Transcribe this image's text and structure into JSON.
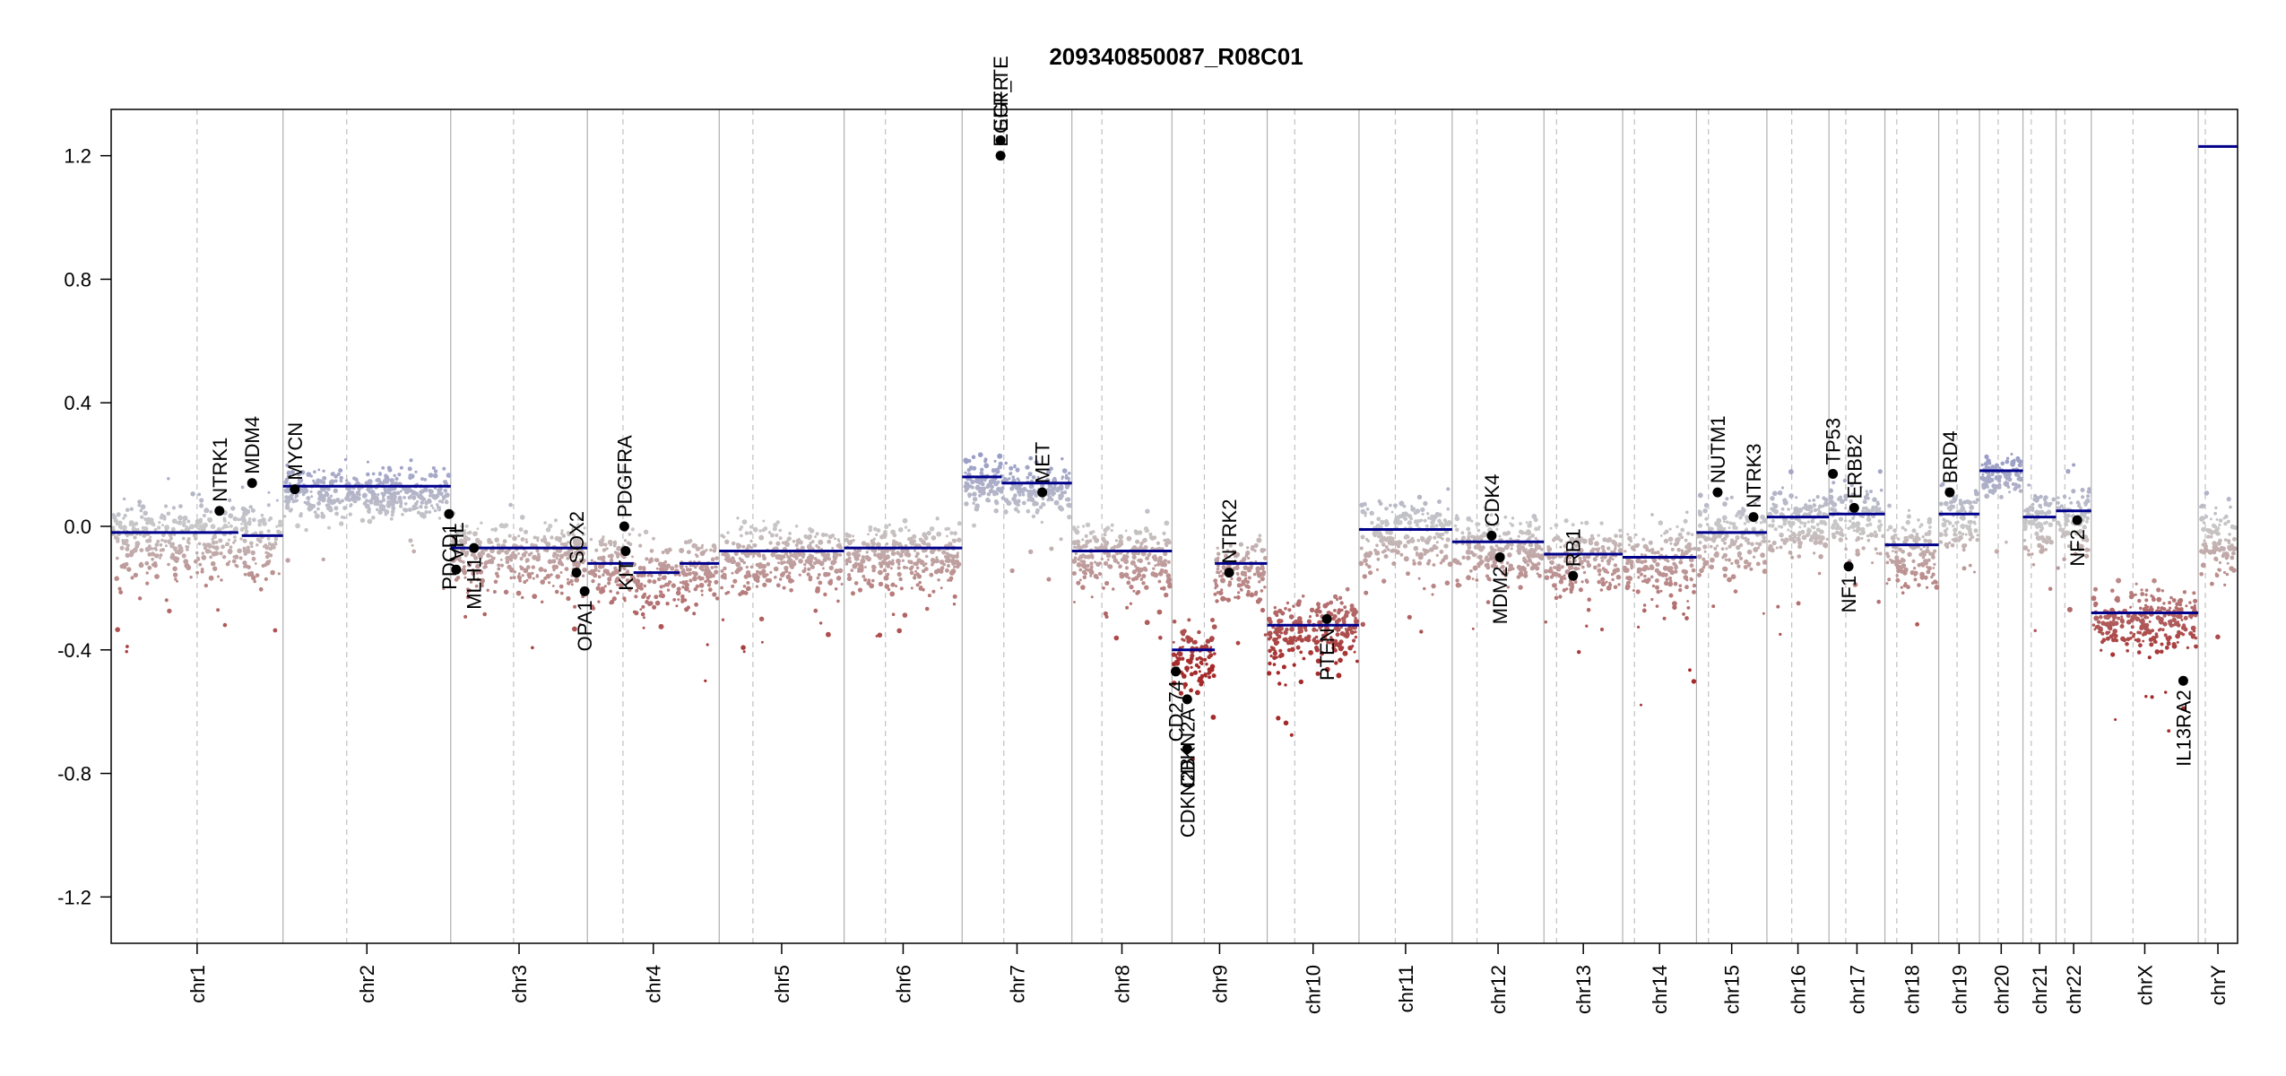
{
  "chart_data": {
    "type": "scatter",
    "title": "209340850087_R08C01",
    "xlabel": "",
    "ylabel": "",
    "ylim": [
      -1.35,
      1.35
    ],
    "yticks": [
      -1.2,
      -0.8,
      -0.4,
      0.0,
      0.4,
      0.8,
      1.2
    ],
    "ytick_labels": [
      "-1.2",
      "-0.8",
      "-0.4",
      "0.0",
      "0.4",
      "0.8",
      "1.2"
    ],
    "colors": {
      "gain": "#8a8fc7",
      "neutral": "#c8c8c8",
      "loss": "#a52a2a",
      "segment": "#00008b",
      "gene_point": "#000000"
    },
    "chromosomes": [
      {
        "name": "chr1",
        "size": 249,
        "centromere": 0.5,
        "segments": [
          [
            0.0,
            0.74,
            -0.02
          ],
          [
            0.76,
            1.0,
            -0.03
          ]
        ],
        "level": -0.05,
        "spread": 0.16
      },
      {
        "name": "chr2",
        "size": 243,
        "centromere": 0.38,
        "segments": [
          [
            0.0,
            1.0,
            0.13
          ]
        ],
        "level": 0.12,
        "spread": 0.1
      },
      {
        "name": "chr3",
        "size": 198,
        "centromere": 0.46,
        "segments": [
          [
            0.0,
            1.0,
            -0.07
          ]
        ],
        "level": -0.1,
        "spread": 0.14
      },
      {
        "name": "chr4",
        "size": 191,
        "centromere": 0.27,
        "segments": [
          [
            0.0,
            0.35,
            -0.12
          ],
          [
            0.35,
            0.7,
            -0.15
          ],
          [
            0.7,
            1.0,
            -0.12
          ]
        ],
        "level": -0.14,
        "spread": 0.14
      },
      {
        "name": "chr5",
        "size": 181,
        "centromere": 0.27,
        "segments": [
          [
            0.0,
            1.0,
            -0.08
          ]
        ],
        "level": -0.08,
        "spread": 0.14
      },
      {
        "name": "chr6",
        "size": 171,
        "centromere": 0.35,
        "segments": [
          [
            0.0,
            1.0,
            -0.07
          ]
        ],
        "level": -0.07,
        "spread": 0.14
      },
      {
        "name": "chr7",
        "size": 159,
        "centromere": 0.38,
        "segments": [
          [
            0.0,
            0.36,
            0.16
          ],
          [
            0.36,
            1.0,
            0.14
          ]
        ],
        "level": 0.14,
        "spread": 0.1
      },
      {
        "name": "chr8",
        "size": 145,
        "centromere": 0.3,
        "segments": [
          [
            0.0,
            1.0,
            -0.08
          ]
        ],
        "level": -0.1,
        "spread": 0.14
      },
      {
        "name": "chr9",
        "size": 138,
        "centromere": 0.34,
        "segments": [
          [
            0.0,
            0.45,
            -0.4
          ],
          [
            0.45,
            1.0,
            -0.12
          ]
        ],
        "level": -0.12,
        "spread": 0.14
      },
      {
        "name": "chr10",
        "size": 133,
        "centromere": 0.3,
        "segments": [
          [
            0.0,
            1.0,
            -0.32
          ]
        ],
        "level": -0.32,
        "spread": 0.14
      },
      {
        "name": "chr11",
        "size": 135,
        "centromere": 0.39,
        "segments": [
          [
            0.0,
            1.0,
            -0.01
          ]
        ],
        "level": -0.04,
        "spread": 0.14
      },
      {
        "name": "chr12",
        "size": 133,
        "centromere": 0.27,
        "segments": [
          [
            0.0,
            1.0,
            -0.05
          ]
        ],
        "level": -0.07,
        "spread": 0.14
      },
      {
        "name": "chr13",
        "size": 114,
        "centromere": 0.16,
        "segments": [
          [
            0.0,
            1.0,
            -0.09
          ]
        ],
        "level": -0.12,
        "spread": 0.14
      },
      {
        "name": "chr14",
        "size": 107,
        "centromere": 0.16,
        "segments": [
          [
            0.0,
            1.0,
            -0.1
          ]
        ],
        "level": -0.18,
        "spread": 0.16
      },
      {
        "name": "chr15",
        "size": 102,
        "centromere": 0.17,
        "segments": [
          [
            0.0,
            1.0,
            -0.02
          ]
        ],
        "level": -0.05,
        "spread": 0.14
      },
      {
        "name": "chr16",
        "size": 90,
        "centromere": 0.4,
        "segments": [
          [
            0.0,
            1.0,
            0.03
          ]
        ],
        "level": -0.02,
        "spread": 0.14
      },
      {
        "name": "chr17",
        "size": 81,
        "centromere": 0.3,
        "segments": [
          [
            0.0,
            1.0,
            0.04
          ]
        ],
        "level": -0.03,
        "spread": 0.14
      },
      {
        "name": "chr18",
        "size": 78,
        "centromere": 0.22,
        "segments": [
          [
            0.0,
            1.0,
            -0.06
          ]
        ],
        "level": -0.12,
        "spread": 0.16
      },
      {
        "name": "chr19",
        "size": 59,
        "centromere": 0.45,
        "segments": [
          [
            0.0,
            1.0,
            0.04
          ]
        ],
        "level": 0.02,
        "spread": 0.14
      },
      {
        "name": "chr20",
        "size": 63,
        "centromere": 0.43,
        "segments": [
          [
            0.0,
            1.0,
            0.18
          ]
        ],
        "level": 0.2,
        "spread": 0.08
      },
      {
        "name": "chr21",
        "size": 48,
        "centromere": 0.25,
        "segments": [
          [
            0.0,
            1.0,
            0.03
          ]
        ],
        "level": -0.1,
        "spread": 0.16
      },
      {
        "name": "chr22",
        "size": 51,
        "centromere": 0.25,
        "segments": [
          [
            0.0,
            1.0,
            0.05
          ]
        ],
        "level": 0.0,
        "spread": 0.14
      },
      {
        "name": "chrX",
        "size": 155,
        "centromere": 0.39,
        "segments": [
          [
            0.0,
            1.0,
            -0.28
          ]
        ],
        "level": -0.32,
        "spread": 0.12
      },
      {
        "name": "chrY",
        "size": 57,
        "centromere": 0.18,
        "segments": [
          [
            0.0,
            1.0,
            1.23
          ]
        ],
        "level": -0.05,
        "spread": 0.14
      }
    ],
    "genes": [
      {
        "name": "NTRK1",
        "chr": "chr1",
        "pos": 0.63,
        "value": 0.05
      },
      {
        "name": "MDM4",
        "chr": "chr1",
        "pos": 0.82,
        "value": 0.14
      },
      {
        "name": "MYCN",
        "chr": "chr2",
        "pos": 0.07,
        "value": 0.12
      },
      {
        "name": "PDCD1",
        "chr": "chr2",
        "pos": 0.99,
        "value": 0.04
      },
      {
        "name": "VHL",
        "chr": "chr3",
        "pos": 0.04,
        "value": -0.14
      },
      {
        "name": "MLH1",
        "chr": "chr3",
        "pos": 0.17,
        "value": -0.07
      },
      {
        "name": "SOX2",
        "chr": "chr3",
        "pos": 0.92,
        "value": -0.15
      },
      {
        "name": "OPA1",
        "chr": "chr3",
        "pos": 0.98,
        "value": -0.21
      },
      {
        "name": "PDGFRA",
        "chr": "chr4",
        "pos": 0.28,
        "value": 0.0
      },
      {
        "name": "KIT",
        "chr": "chr4",
        "pos": 0.29,
        "value": -0.08
      },
      {
        "name": "EGFR",
        "chr": "chr7",
        "pos": 0.35,
        "value": 1.25
      },
      {
        "name": "EGFR_TE",
        "chr": "chr7",
        "pos": 0.35,
        "value": 1.2
      },
      {
        "name": "MET",
        "chr": "chr7",
        "pos": 0.73,
        "value": 0.11
      },
      {
        "name": "CD274",
        "chr": "chr9",
        "pos": 0.04,
        "value": -0.47
      },
      {
        "name": "CDKN2A",
        "chr": "chr9",
        "pos": 0.16,
        "value": -0.56
      },
      {
        "name": "CDKN2B",
        "chr": "chr9",
        "pos": 0.16,
        "value": -0.72
      },
      {
        "name": "NTRK2",
        "chr": "chr9",
        "pos": 0.6,
        "value": -0.15
      },
      {
        "name": "PTEN",
        "chr": "chr10",
        "pos": 0.65,
        "value": -0.3
      },
      {
        "name": "CDK4",
        "chr": "chr12",
        "pos": 0.43,
        "value": -0.03
      },
      {
        "name": "MDM2",
        "chr": "chr12",
        "pos": 0.52,
        "value": -0.1
      },
      {
        "name": "RB1",
        "chr": "chr13",
        "pos": 0.37,
        "value": -0.16
      },
      {
        "name": "NUTM1",
        "chr": "chr15",
        "pos": 0.3,
        "value": 0.11
      },
      {
        "name": "NTRK3",
        "chr": "chr15",
        "pos": 0.81,
        "value": 0.03
      },
      {
        "name": "TP53",
        "chr": "chr17",
        "pos": 0.07,
        "value": 0.17
      },
      {
        "name": "ERBB2",
        "chr": "chr17",
        "pos": 0.45,
        "value": 0.06
      },
      {
        "name": "NF1",
        "chr": "chr17",
        "pos": 0.35,
        "value": -0.13
      },
      {
        "name": "BRD4",
        "chr": "chr19",
        "pos": 0.27,
        "value": 0.11
      },
      {
        "name": "NF2",
        "chr": "chr22",
        "pos": 0.6,
        "value": 0.02
      },
      {
        "name": "IL13RA2",
        "chr": "chrX",
        "pos": 0.86,
        "value": -0.5
      }
    ]
  }
}
